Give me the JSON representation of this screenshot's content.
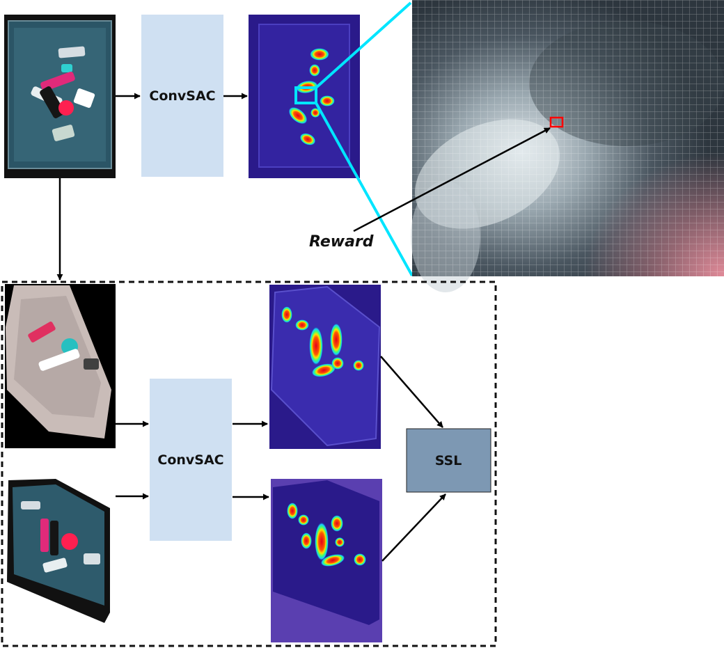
{
  "top_row": {
    "model_label": "ConvSAC",
    "reward_label": "Reward"
  },
  "bottom_row": {
    "model_label": "ConvSAC",
    "ssl_label": "SSL"
  },
  "colors": {
    "model_box": "#cfe0f2",
    "ssl_box": "#7d98b3",
    "zoom_lines": "#00e5ff",
    "target_box": "#ff0000",
    "heatmap_bg": "#2a1a8a"
  },
  "icons": {
    "rgb_image": "bin-with-objects-photo",
    "heatmap": "grasp-affordance-heatmap",
    "zoom": "zoomed-pixel-grid"
  }
}
